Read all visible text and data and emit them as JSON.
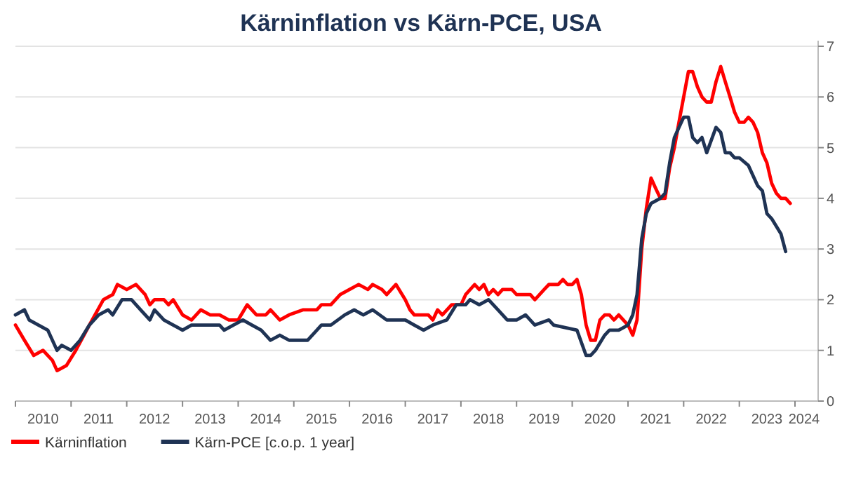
{
  "chart_data": {
    "type": "line",
    "title": "Kärninflation vs Kärn-PCE, USA",
    "xlim": [
      "2010-01",
      "2024-06"
    ],
    "xticks": [
      {
        "value": "2010-01",
        "label": null
      },
      {
        "value": "2010-07",
        "label": "2010"
      },
      {
        "value": "2011-01",
        "label": null
      },
      {
        "value": "2011-07",
        "label": "2011"
      },
      {
        "value": "2012-01",
        "label": null
      },
      {
        "value": "2012-07",
        "label": "2012"
      },
      {
        "value": "2013-01",
        "label": null
      },
      {
        "value": "2013-07",
        "label": "2013"
      },
      {
        "value": "2014-01",
        "label": null
      },
      {
        "value": "2014-07",
        "label": "2014"
      },
      {
        "value": "2015-01",
        "label": null
      },
      {
        "value": "2015-07",
        "label": "2015"
      },
      {
        "value": "2016-01",
        "label": null
      },
      {
        "value": "2016-07",
        "label": "2016"
      },
      {
        "value": "2017-01",
        "label": null
      },
      {
        "value": "2017-07",
        "label": "2017"
      },
      {
        "value": "2018-01",
        "label": null
      },
      {
        "value": "2018-07",
        "label": "2018"
      },
      {
        "value": "2019-01",
        "label": null
      },
      {
        "value": "2019-07",
        "label": "2019"
      },
      {
        "value": "2020-01",
        "label": null
      },
      {
        "value": "2020-07",
        "label": "2020"
      },
      {
        "value": "2021-01",
        "label": null
      },
      {
        "value": "2021-07",
        "label": "2021"
      },
      {
        "value": "2022-01",
        "label": null
      },
      {
        "value": "2022-07",
        "label": "2022"
      },
      {
        "value": "2023-01",
        "label": null
      },
      {
        "value": "2023-07",
        "label": "2023"
      },
      {
        "value": "2024-01",
        "label": null
      },
      {
        "value": "2024-03",
        "label": "2024"
      }
    ],
    "ylim": [
      0,
      7
    ],
    "yticks": [
      0,
      1,
      2,
      3,
      4,
      5,
      6,
      7
    ],
    "grid": "y",
    "legend": "bottom",
    "marker": "none",
    "line_style": "solid",
    "series": [
      {
        "name": "Kärninflation",
        "color": "#ff0000",
        "x": [
          "2010-01",
          "2010-03",
          "2010-05",
          "2010-07",
          "2010-09",
          "2010-10",
          "2010-12",
          "2011-02",
          "2011-05",
          "2011-08",
          "2011-10",
          "2011-11",
          "2012-01",
          "2012-03",
          "2012-05",
          "2012-06",
          "2012-07",
          "2012-09",
          "2012-10",
          "2012-11",
          "2013-01",
          "2013-03",
          "2013-05",
          "2013-07",
          "2013-09",
          "2013-11",
          "2014-01",
          "2014-03",
          "2014-05",
          "2014-07",
          "2014-08",
          "2014-10",
          "2014-12",
          "2015-03",
          "2015-06",
          "2015-07",
          "2015-09",
          "2015-11",
          "2016-01",
          "2016-03",
          "2016-05",
          "2016-06",
          "2016-08",
          "2016-09",
          "2016-11",
          "2017-01",
          "2017-02",
          "2017-03",
          "2017-06",
          "2017-07",
          "2017-08",
          "2017-09",
          "2017-11",
          "2018-01",
          "2018-02",
          "2018-04",
          "2018-05",
          "2018-06",
          "2018-07",
          "2018-08",
          "2018-09",
          "2018-10",
          "2018-12",
          "2019-01",
          "2019-04",
          "2019-05",
          "2019-07",
          "2019-08",
          "2019-10",
          "2019-11",
          "2019-12",
          "2020-01",
          "2020-02",
          "2020-03",
          "2020-04",
          "2020-05",
          "2020-06",
          "2020-07",
          "2020-08",
          "2020-09",
          "2020-10",
          "2020-11",
          "2021-01",
          "2021-02",
          "2021-03",
          "2021-04",
          "2021-05",
          "2021-06",
          "2021-07",
          "2021-08",
          "2021-09",
          "2021-10",
          "2021-11",
          "2021-12",
          "2022-01",
          "2022-02",
          "2022-03",
          "2022-04",
          "2022-05",
          "2022-06",
          "2022-07",
          "2022-08",
          "2022-09",
          "2022-10",
          "2022-11",
          "2022-12",
          "2023-01",
          "2023-02",
          "2023-03",
          "2023-04",
          "2023-05",
          "2023-06",
          "2023-07",
          "2023-08",
          "2023-09",
          "2023-10",
          "2023-11",
          "2023-12"
        ],
        "values": [
          1.5,
          1.2,
          0.9,
          1.0,
          0.8,
          0.6,
          0.7,
          1.0,
          1.5,
          2.0,
          2.1,
          2.3,
          2.2,
          2.3,
          2.1,
          1.9,
          2.0,
          2.0,
          1.9,
          2.0,
          1.7,
          1.6,
          1.8,
          1.7,
          1.7,
          1.6,
          1.6,
          1.9,
          1.7,
          1.7,
          1.8,
          1.6,
          1.7,
          1.8,
          1.8,
          1.9,
          1.9,
          2.1,
          2.2,
          2.3,
          2.2,
          2.3,
          2.2,
          2.1,
          2.3,
          2.0,
          1.8,
          1.7,
          1.7,
          1.6,
          1.8,
          1.7,
          1.9,
          1.9,
          2.1,
          2.3,
          2.2,
          2.3,
          2.1,
          2.2,
          2.1,
          2.2,
          2.2,
          2.1,
          2.1,
          2.0,
          2.2,
          2.3,
          2.3,
          2.4,
          2.3,
          2.3,
          2.4,
          2.1,
          1.5,
          1.2,
          1.2,
          1.6,
          1.7,
          1.7,
          1.6,
          1.7,
          1.5,
          1.3,
          1.6,
          3.0,
          3.8,
          4.4,
          4.2,
          4.0,
          4.0,
          4.6,
          5.0,
          5.5,
          6.0,
          6.5,
          6.5,
          6.2,
          6.0,
          5.9,
          5.9,
          6.3,
          6.6,
          6.3,
          6.0,
          5.7,
          5.5,
          5.5,
          5.6,
          5.5,
          5.3,
          4.9,
          4.7,
          4.3,
          4.1,
          4.0,
          4.0,
          3.9
        ]
      },
      {
        "name": "Kärn-PCE [c.o.p. 1 year]",
        "color": "#1f3354",
        "x": [
          "2010-01",
          "2010-03",
          "2010-04",
          "2010-06",
          "2010-08",
          "2010-10",
          "2010-11",
          "2011-01",
          "2011-03",
          "2011-05",
          "2011-07",
          "2011-09",
          "2011-10",
          "2011-12",
          "2012-02",
          "2012-04",
          "2012-06",
          "2012-07",
          "2012-09",
          "2012-11",
          "2013-01",
          "2013-03",
          "2013-05",
          "2013-07",
          "2013-09",
          "2013-10",
          "2013-12",
          "2014-02",
          "2014-04",
          "2014-06",
          "2014-08",
          "2014-10",
          "2014-12",
          "2015-02",
          "2015-04",
          "2015-06",
          "2015-07",
          "2015-09",
          "2015-12",
          "2016-02",
          "2016-04",
          "2016-06",
          "2016-09",
          "2016-11",
          "2017-01",
          "2017-03",
          "2017-05",
          "2017-07",
          "2017-10",
          "2017-12",
          "2018-02",
          "2018-03",
          "2018-05",
          "2018-07",
          "2018-09",
          "2018-11",
          "2019-01",
          "2019-03",
          "2019-05",
          "2019-08",
          "2019-09",
          "2020-02",
          "2020-04",
          "2020-05",
          "2020-06",
          "2020-08",
          "2020-09",
          "2020-11",
          "2021-01",
          "2021-02",
          "2021-03",
          "2021-04",
          "2021-05",
          "2021-06",
          "2021-08",
          "2021-09",
          "2021-10",
          "2021-11",
          "2021-12",
          "2022-01",
          "2022-02",
          "2022-03",
          "2022-04",
          "2022-05",
          "2022-06",
          "2022-08",
          "2022-09",
          "2022-10",
          "2022-11",
          "2022-12",
          "2023-01",
          "2023-03",
          "2023-05",
          "2023-06",
          "2023-07",
          "2023-08",
          "2023-10",
          "2023-11"
        ],
        "values": [
          1.7,
          1.8,
          1.6,
          1.5,
          1.4,
          1.0,
          1.1,
          1.0,
          1.2,
          1.5,
          1.7,
          1.8,
          1.7,
          2.0,
          2.0,
          1.8,
          1.6,
          1.8,
          1.6,
          1.5,
          1.4,
          1.5,
          1.5,
          1.5,
          1.5,
          1.4,
          1.5,
          1.6,
          1.5,
          1.4,
          1.2,
          1.3,
          1.2,
          1.2,
          1.2,
          1.4,
          1.5,
          1.5,
          1.7,
          1.8,
          1.7,
          1.8,
          1.6,
          1.6,
          1.6,
          1.5,
          1.4,
          1.5,
          1.6,
          1.9,
          1.9,
          2.0,
          1.9,
          2.0,
          1.8,
          1.6,
          1.6,
          1.7,
          1.5,
          1.6,
          1.5,
          1.4,
          0.9,
          0.9,
          1.0,
          1.3,
          1.4,
          1.4,
          1.5,
          1.7,
          2.1,
          3.2,
          3.7,
          3.9,
          4.0,
          4.1,
          4.7,
          5.2,
          5.4,
          5.6,
          5.6,
          5.2,
          5.1,
          5.2,
          4.9,
          5.4,
          5.3,
          4.9,
          4.9,
          4.8,
          4.8,
          4.65,
          4.25,
          4.15,
          3.7,
          3.6,
          3.3,
          2.95
        ]
      }
    ]
  }
}
